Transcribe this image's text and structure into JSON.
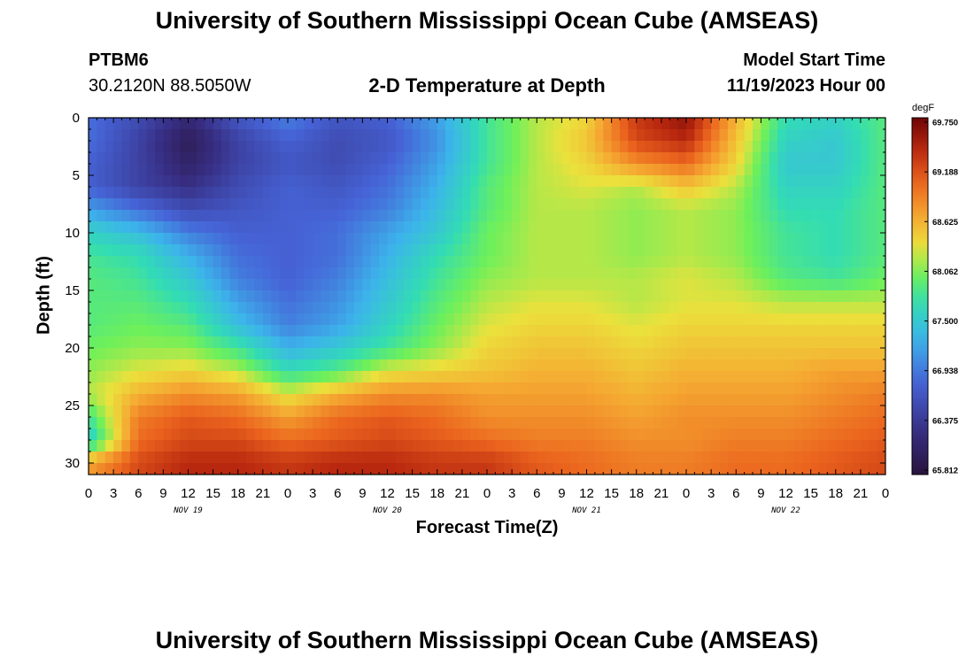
{
  "header": {
    "title": "University of Southern Mississippi Ocean Cube (AMSEAS)",
    "station": "PTBM6",
    "coords": "30.2120N  88.5050W",
    "subtitle": "2-D Temperature at Depth",
    "model_start_label": "Model Start Time",
    "model_start_value": "11/19/2023 Hour 00"
  },
  "footer": {
    "title": "University of Southern Mississippi Ocean Cube (AMSEAS)"
  },
  "chart_data": {
    "type": "heatmap",
    "title": "2-D Temperature at Depth",
    "xlabel": "Forecast Time(Z)",
    "ylabel": "Depth (ft)",
    "x_hours": [
      0,
      96
    ],
    "x_tick_labels": [
      "0",
      "3",
      "6",
      "9",
      "12",
      "15",
      "18",
      "21",
      "0",
      "3",
      "6",
      "9",
      "12",
      "15",
      "18",
      "21",
      "0",
      "3",
      "6",
      "9",
      "12",
      "15",
      "18",
      "21",
      "0",
      "3",
      "6",
      "9",
      "12",
      "15",
      "18",
      "21",
      "0"
    ],
    "day_labels": [
      {
        "hour": 12,
        "label": "NOV 19"
      },
      {
        "hour": 36,
        "label": "NOV 20"
      },
      {
        "hour": 60,
        "label": "NOV 21"
      },
      {
        "hour": 84,
        "label": "NOV 22"
      }
    ],
    "ylim": [
      0,
      31
    ],
    "y_ticks": [
      0,
      5,
      10,
      15,
      20,
      25,
      30
    ],
    "colorbar": {
      "unit": "degF",
      "min": 65.812,
      "max": 69.75,
      "labels": [
        "69.750",
        "69.188",
        "68.625",
        "68.062",
        "67.500",
        "66.938",
        "66.375",
        "65.812"
      ]
    },
    "depth_rows": [
      0,
      2,
      4,
      6,
      8,
      10,
      12,
      14,
      16,
      18,
      20,
      22,
      24,
      26,
      28,
      30
    ],
    "time_cols_hours": [
      0,
      6,
      12,
      18,
      24,
      30,
      36,
      42,
      48,
      54,
      60,
      66,
      72,
      78,
      84,
      90,
      96
    ],
    "temperature_degF": [
      [
        66.9,
        66.6,
        66.2,
        66.7,
        67.0,
        66.7,
        66.8,
        67.2,
        67.8,
        68.2,
        68.4,
        69.3,
        69.6,
        68.6,
        67.7,
        67.6,
        67.9
      ],
      [
        66.9,
        66.5,
        66.0,
        66.5,
        66.8,
        66.6,
        66.7,
        67.1,
        67.8,
        68.2,
        68.5,
        69.2,
        69.4,
        68.5,
        67.6,
        67.5,
        67.9
      ],
      [
        66.8,
        66.5,
        66.1,
        66.5,
        66.7,
        66.6,
        66.8,
        67.2,
        67.8,
        68.2,
        68.4,
        68.8,
        69.0,
        68.4,
        67.5,
        67.5,
        67.9
      ],
      [
        66.8,
        66.5,
        66.3,
        66.6,
        66.8,
        66.7,
        66.9,
        67.3,
        67.9,
        68.2,
        68.3,
        68.2,
        68.5,
        68.2,
        67.6,
        67.6,
        67.9
      ],
      [
        67.2,
        66.9,
        66.6,
        66.7,
        66.8,
        66.8,
        67.0,
        67.4,
        67.9,
        68.2,
        68.2,
        68.1,
        68.2,
        68.1,
        67.7,
        67.7,
        67.9
      ],
      [
        67.6,
        67.4,
        67.0,
        66.8,
        66.8,
        66.9,
        67.2,
        67.5,
        68.0,
        68.2,
        68.2,
        68.1,
        68.2,
        68.1,
        67.8,
        67.7,
        67.9
      ],
      [
        67.8,
        67.7,
        67.3,
        66.9,
        66.8,
        66.9,
        67.3,
        67.7,
        68.0,
        68.2,
        68.2,
        68.1,
        68.2,
        68.1,
        67.8,
        67.7,
        67.9
      ],
      [
        67.9,
        67.8,
        67.5,
        67.0,
        66.8,
        67.0,
        67.4,
        67.8,
        68.1,
        68.2,
        68.2,
        68.2,
        68.3,
        68.2,
        67.9,
        67.8,
        68.0
      ],
      [
        67.9,
        67.9,
        67.7,
        67.2,
        66.9,
        67.1,
        67.5,
        67.9,
        68.2,
        68.3,
        68.3,
        68.2,
        68.3,
        68.3,
        68.2,
        68.2,
        68.2
      ],
      [
        67.9,
        68.0,
        67.9,
        67.4,
        67.0,
        67.2,
        67.6,
        68.0,
        68.3,
        68.4,
        68.4,
        68.3,
        68.4,
        68.4,
        68.4,
        68.4,
        68.4
      ],
      [
        68.0,
        68.1,
        68.1,
        67.8,
        67.3,
        67.5,
        67.8,
        68.1,
        68.4,
        68.5,
        68.5,
        68.4,
        68.5,
        68.5,
        68.5,
        68.5,
        68.5
      ],
      [
        68.1,
        68.3,
        68.4,
        68.2,
        67.7,
        67.9,
        68.3,
        68.4,
        68.5,
        68.6,
        68.6,
        68.5,
        68.6,
        68.6,
        68.6,
        68.7,
        68.7
      ],
      [
        68.2,
        68.6,
        68.8,
        68.7,
        68.3,
        68.6,
        68.8,
        68.8,
        68.7,
        68.7,
        68.7,
        68.6,
        68.7,
        68.7,
        68.7,
        68.8,
        68.9
      ],
      [
        67.8,
        68.9,
        69.1,
        69.0,
        68.7,
        69.0,
        69.1,
        69.0,
        68.8,
        68.8,
        68.8,
        68.7,
        68.8,
        68.8,
        68.8,
        68.9,
        69.0
      ],
      [
        67.5,
        69.0,
        69.2,
        69.2,
        69.0,
        69.1,
        69.2,
        69.1,
        69.0,
        68.9,
        68.9,
        68.8,
        68.8,
        68.9,
        68.9,
        69.0,
        69.1
      ],
      [
        68.7,
        69.2,
        69.4,
        69.4,
        69.3,
        69.4,
        69.4,
        69.3,
        69.3,
        69.1,
        69.0,
        68.9,
        68.9,
        69.0,
        69.0,
        69.1,
        69.2
      ]
    ]
  }
}
